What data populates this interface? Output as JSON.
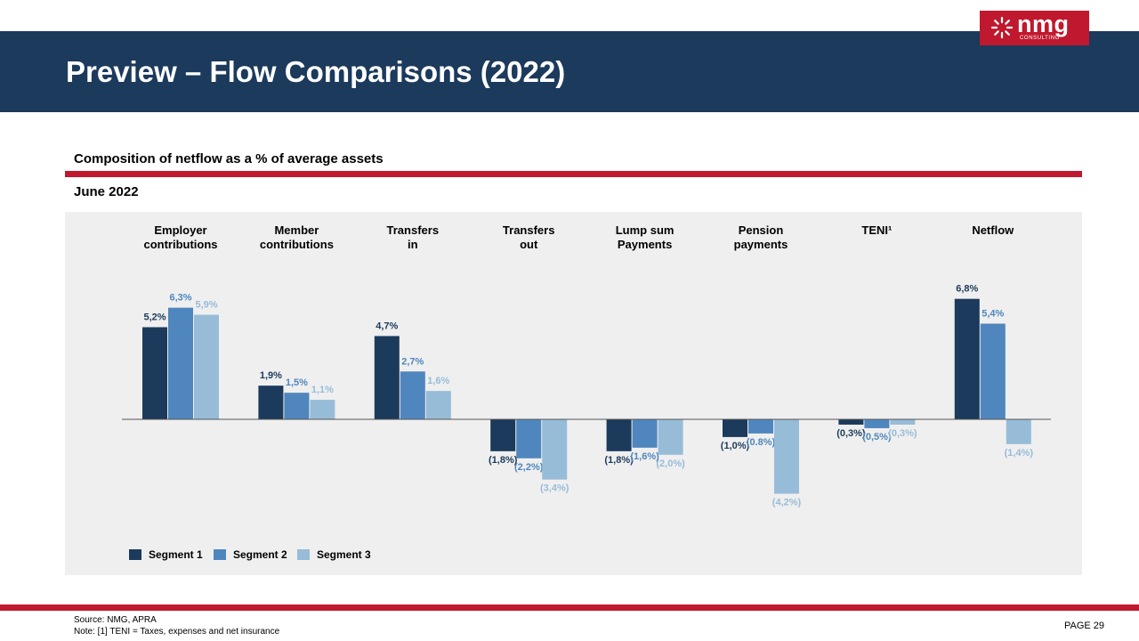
{
  "header": {
    "title": "Preview – Flow Comparisons (2022)",
    "logo_word": "nmg",
    "logo_sub": "CONSULTING"
  },
  "subtitle": "Composition of netflow as a % of average assets",
  "date": "June 2022",
  "footer": {
    "source": "Source: NMG,  APRA",
    "note": "Note: [1] TENI  = Taxes, expenses and net insurance",
    "page": "PAGE  29"
  },
  "colors": {
    "header_bg": "#1b3a5c",
    "accent_red": "#c0182e",
    "segment1": "#1b3a5c",
    "segment2": "#4f86bd",
    "segment3": "#97bcd8",
    "panel_bg": "#efefef"
  },
  "chart_data": {
    "type": "bar",
    "categories": [
      [
        "Employer",
        "contributions"
      ],
      [
        "Member",
        "contributions"
      ],
      [
        "Transfers",
        "in"
      ],
      [
        "Transfers",
        "out"
      ],
      [
        "Lump sum",
        "Payments"
      ],
      [
        "Pension",
        "payments"
      ],
      [
        "TENI¹"
      ],
      [
        "Netflow"
      ]
    ],
    "series": [
      {
        "name": "Segment 1",
        "color": "#1b3a5c",
        "values": [
          5.2,
          1.9,
          4.7,
          -1.8,
          -1.8,
          -1.0,
          -0.3,
          6.8
        ],
        "labels": [
          "5,2%",
          "1,9%",
          "4,7%",
          "(1,8%)",
          "(1,8%)",
          "(1,0%)",
          "(0,3%)",
          "6,8%"
        ]
      },
      {
        "name": "Segment 2",
        "color": "#4f86bd",
        "values": [
          6.3,
          1.5,
          2.7,
          -2.2,
          -1.6,
          -0.8,
          -0.5,
          5.4
        ],
        "labels": [
          "6,3%",
          "1,5%",
          "2,7%",
          "(2,2%)",
          "(1,6%)",
          "(0.8%)",
          "(0,5%)",
          "5,4%"
        ]
      },
      {
        "name": "Segment 3",
        "color": "#97bcd8",
        "values": [
          5.9,
          1.1,
          1.6,
          -3.4,
          -2.0,
          -4.2,
          -0.3,
          -1.4
        ],
        "labels": [
          "5,9%",
          "1,1%",
          "1,6%",
          "(3,4%)",
          "(2,0%)",
          "(4,2%)",
          "(0,3%)",
          "(1,4%)"
        ]
      }
    ],
    "legend_position": "bottom-left",
    "grid": false
  }
}
